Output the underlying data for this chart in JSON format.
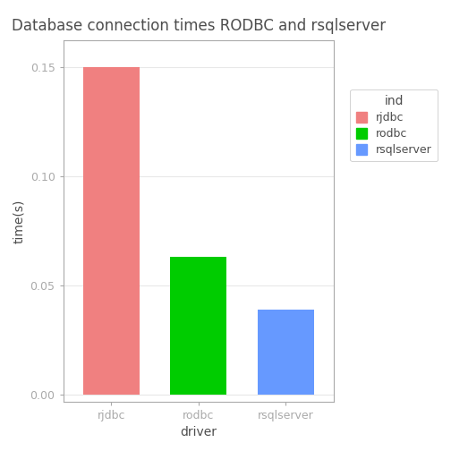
{
  "title": "Database connection times RODBC and rsqlserver",
  "categories": [
    "rjdbc",
    "rodbc",
    "rsqlserver"
  ],
  "values": [
    0.15,
    0.063,
    0.039
  ],
  "bar_colors": [
    "#F08080",
    "#00CC00",
    "#6699FF"
  ],
  "xlabel": "driver",
  "ylabel": "time(s)",
  "ylim": [
    -0.003,
    0.162
  ],
  "yticks": [
    0.0,
    0.05,
    0.1,
    0.15
  ],
  "legend_title": "ind",
  "legend_labels": [
    "rjdbc",
    "rodbc",
    "rsqlserver"
  ],
  "legend_colors": [
    "#F08080",
    "#00CC00",
    "#6699FF"
  ],
  "background_color": "#FFFFFF",
  "panel_background": "#FFFFFF",
  "grid_color": "#E8E8E8",
  "border_color": "#AAAAAA",
  "text_color": "#4D4D4D",
  "axis_label_color": "#4D4D4D",
  "title_fontsize": 12,
  "axis_fontsize": 10,
  "tick_fontsize": 9,
  "legend_fontsize": 9,
  "bar_width": 0.65
}
